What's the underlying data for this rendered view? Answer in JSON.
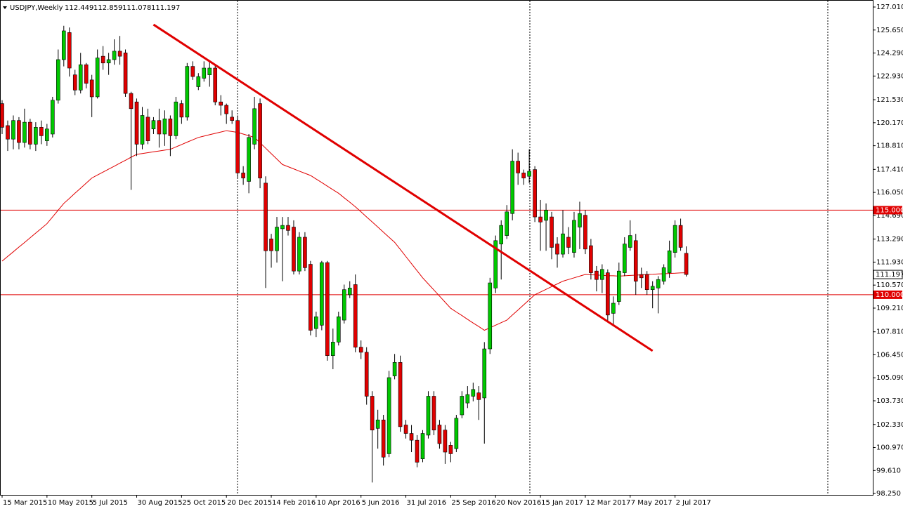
{
  "chart_data": {
    "type": "candlestick",
    "title": "USDJPY,Weekly",
    "header_ohlc": [
      "112.449",
      "112.859",
      "111.078",
      "111.197"
    ],
    "categories": [
      "15 Mar 2015",
      null,
      null,
      null,
      null,
      null,
      null,
      null,
      "10 May 2015",
      null,
      null,
      null,
      null,
      null,
      null,
      null,
      "5 Jul 2015",
      null,
      null,
      null,
      null,
      null,
      null,
      null,
      "30 Aug 2015",
      null,
      null,
      null,
      null,
      null,
      null,
      null,
      "25 Oct 2015",
      null,
      null,
      null,
      null,
      null,
      null,
      null,
      "20 Dec 2015",
      null,
      null,
      null,
      null,
      null,
      null,
      null,
      "14 Feb 2016",
      null,
      null,
      null,
      null,
      null,
      null,
      null,
      "10 Apr 2016",
      null,
      null,
      null,
      null,
      null,
      null,
      null,
      "5 Jun 2016",
      null,
      null,
      null,
      null,
      null,
      null,
      null,
      "31 Jul 2016",
      null,
      null,
      null,
      null,
      null,
      null,
      null,
      "25 Sep 2016",
      null,
      null,
      null,
      null,
      null,
      null,
      null,
      "20 Nov 2016",
      null,
      null,
      null,
      null,
      null,
      null,
      null,
      "15 Jan 2017",
      null,
      null,
      null,
      null,
      null,
      null,
      null,
      "12 Mar 2017",
      null,
      null,
      null,
      null,
      null,
      null,
      null,
      "7 May 2017",
      null,
      null,
      null,
      null,
      null,
      null,
      null,
      "2 Jul 2017",
      null,
      null
    ],
    "open": [
      121.3,
      120.0,
      119.2,
      120.3,
      119.0,
      120.2,
      118.9,
      119.9,
      119.1,
      119.5,
      121.5,
      123.9,
      125.5,
      123.0,
      122.1,
      123.6,
      122.7,
      121.7,
      124.1,
      123.7,
      123.9,
      124.4,
      124.3,
      121.9,
      121.4,
      118.9,
      120.5,
      119.8,
      120.3,
      119.5,
      120.4,
      119.4,
      121.3,
      120.5,
      123.5,
      122.3,
      122.8,
      123.0,
      123.4,
      121.4,
      121.2,
      120.5,
      120.3,
      117.2,
      116.7,
      118.9,
      121.3,
      116.6,
      113.3,
      112.6,
      113.9,
      114.1,
      114.0,
      111.4,
      113.4,
      111.8,
      108.0,
      108.2,
      111.9,
      106.4,
      107.2,
      108.5,
      110.0,
      110.6,
      106.9,
      106.6,
      104.0,
      102.1,
      102.6,
      100.6,
      105.2,
      106.0,
      102.3,
      101.8,
      101.4,
      100.3,
      101.7,
      104.0,
      102.3,
      102.0,
      101.1,
      100.9,
      102.9,
      103.6,
      104.0,
      104.2,
      103.9,
      106.8,
      110.4,
      113.0,
      113.5,
      114.8,
      117.9,
      117.2,
      117.0,
      117.4,
      114.6,
      114.4,
      114.6,
      113.0,
      112.4,
      113.4,
      112.5,
      114.0,
      114.7,
      112.9,
      111.4,
      110.9,
      111.3,
      108.9,
      109.6,
      111.3,
      112.8,
      113.2,
      111.2,
      111.2,
      110.3,
      110.4,
      110.8,
      111.3,
      112.5,
      114.1,
      112.449
    ],
    "high": [
      121.5,
      120.3,
      120.6,
      120.5,
      121.0,
      120.4,
      120.2,
      120.3,
      120.1,
      121.7,
      124.5,
      125.9,
      125.8,
      123.3,
      124.3,
      123.7,
      123.0,
      124.5,
      124.7,
      124.3,
      125.1,
      125.3,
      124.5,
      122.0,
      121.6,
      121.1,
      121.0,
      120.5,
      121.0,
      120.9,
      120.6,
      121.7,
      121.5,
      123.7,
      123.8,
      123.1,
      123.8,
      123.8,
      123.6,
      121.8,
      121.3,
      120.9,
      120.6,
      117.6,
      119.5,
      121.7,
      121.6,
      117.0,
      113.6,
      114.6,
      114.6,
      114.6,
      114.4,
      113.7,
      113.7,
      112.0,
      109.0,
      112.0,
      112.0,
      108.0,
      109.0,
      110.6,
      110.8,
      111.2,
      107.3,
      106.9,
      104.3,
      103.2,
      102.9,
      105.5,
      106.5,
      106.4,
      102.6,
      102.3,
      101.7,
      102.0,
      104.3,
      104.3,
      102.6,
      102.3,
      101.3,
      102.9,
      104.3,
      104.6,
      104.8,
      104.6,
      107.2,
      111.0,
      113.5,
      114.4,
      115.3,
      118.6,
      118.4,
      117.4,
      118.6,
      117.6,
      115.6,
      115.4,
      114.9,
      113.4,
      115.0,
      114.0,
      114.9,
      115.5,
      115.0,
      113.3,
      111.7,
      111.8,
      111.5,
      109.9,
      111.9,
      113.4,
      114.4,
      113.6,
      111.6,
      111.4,
      110.8,
      111.1,
      111.8,
      113.2,
      114.4,
      114.5,
      112.859
    ],
    "low": [
      119.5,
      118.5,
      118.6,
      118.6,
      118.7,
      118.6,
      118.5,
      118.9,
      118.8,
      119.3,
      121.3,
      123.5,
      122.9,
      121.8,
      121.9,
      122.2,
      120.5,
      121.6,
      123.3,
      123.0,
      123.6,
      123.6,
      121.7,
      116.2,
      118.2,
      118.6,
      118.9,
      119.5,
      118.7,
      118.8,
      118.2,
      119.2,
      120.1,
      120.3,
      122.7,
      122.1,
      122.6,
      122.3,
      121.2,
      120.6,
      120.1,
      120.1,
      116.9,
      116.5,
      116.0,
      118.6,
      116.3,
      110.4,
      111.6,
      111.9,
      110.8,
      113.5,
      111.2,
      111.2,
      111.4,
      107.6,
      107.5,
      107.9,
      106.1,
      105.6,
      107.0,
      108.3,
      109.8,
      106.6,
      106.2,
      103.5,
      98.9,
      100.9,
      99.9,
      100.4,
      105.0,
      101.9,
      101.5,
      100.7,
      99.8,
      100.1,
      101.5,
      101.7,
      100.9,
      100.0,
      100.1,
      100.7,
      102.7,
      103.3,
      103.7,
      102.6,
      101.2,
      106.5,
      110.1,
      110.9,
      113.3,
      114.4,
      116.5,
      116.5,
      116.6,
      114.3,
      112.6,
      112.6,
      112.1,
      111.6,
      112.2,
      112.4,
      112.2,
      112.7,
      112.4,
      110.9,
      110.2,
      110.1,
      108.4,
      108.2,
      109.4,
      111.1,
      112.6,
      110.0,
      110.4,
      110.0,
      109.2,
      108.9,
      110.6,
      111.0,
      112.2,
      112.6,
      111.078
    ],
    "close": [
      119.9,
      119.2,
      120.3,
      119.0,
      120.2,
      118.9,
      119.9,
      119.4,
      119.8,
      121.5,
      123.9,
      125.6,
      123.4,
      122.1,
      123.6,
      122.5,
      121.7,
      124.0,
      123.7,
      123.9,
      124.4,
      124.1,
      121.9,
      121.0,
      118.9,
      120.6,
      119.1,
      120.3,
      119.5,
      120.4,
      119.4,
      121.4,
      120.5,
      123.5,
      122.9,
      122.9,
      123.4,
      123.4,
      121.4,
      121.2,
      120.7,
      120.3,
      117.2,
      116.9,
      119.3,
      121.0,
      116.9,
      112.6,
      112.6,
      114.0,
      114.1,
      113.8,
      111.4,
      113.4,
      111.6,
      107.9,
      108.7,
      111.9,
      106.4,
      107.2,
      108.7,
      110.3,
      110.4,
      106.9,
      106.6,
      104.0,
      102.0,
      102.6,
      100.4,
      105.1,
      106.0,
      102.2,
      101.8,
      101.4,
      100.1,
      101.8,
      104.0,
      102.0,
      101.2,
      100.7,
      100.6,
      102.7,
      104.0,
      104.1,
      104.4,
      103.8,
      106.8,
      110.7,
      113.2,
      114.1,
      114.9,
      117.9,
      117.2,
      116.9,
      117.3,
      114.6,
      114.3,
      115.0,
      112.8,
      112.4,
      113.6,
      112.8,
      114.4,
      114.8,
      112.7,
      111.3,
      110.9,
      111.5,
      108.8,
      109.5,
      111.4,
      113.0,
      113.5,
      110.8,
      111.0,
      110.3,
      110.5,
      110.9,
      111.6,
      112.6,
      114.1,
      112.8,
      111.197
    ],
    "close_label": "111.197",
    "moving_average": [
      111.99,
      112.27,
      112.54,
      112.82,
      113.09,
      113.37,
      113.65,
      113.92,
      114.2,
      114.6,
      115.0,
      115.4,
      115.7,
      116.0,
      116.3,
      116.6,
      116.9,
      117.08,
      117.25,
      117.43,
      117.6,
      117.78,
      117.95,
      118.13,
      118.3,
      118.35,
      118.4,
      118.45,
      118.5,
      118.55,
      118.6,
      118.74,
      118.88,
      119.02,
      119.16,
      119.3,
      119.38,
      119.46,
      119.54,
      119.62,
      119.7,
      119.65,
      119.6,
      119.5,
      119.4,
      119.3,
      118.98,
      118.66,
      118.34,
      118.02,
      117.7,
      117.57,
      117.44,
      117.31,
      117.18,
      117.05,
      116.84,
      116.63,
      116.42,
      116.21,
      116.0,
      115.73,
      115.47,
      115.2,
      114.9,
      114.6,
      114.3,
      114.0,
      113.7,
      113.4,
      113.1,
      112.68,
      112.26,
      111.84,
      111.42,
      111.0,
      110.64,
      110.28,
      109.92,
      109.56,
      109.2,
      108.98,
      108.77,
      108.55,
      108.33,
      108.12,
      107.9,
      108.05,
      108.2,
      108.35,
      108.5,
      108.8,
      109.1,
      109.4,
      109.7,
      110.0,
      110.16,
      110.32,
      110.48,
      110.64,
      110.8,
      110.9,
      111.0,
      111.1,
      111.2,
      111.18,
      111.17,
      111.15,
      111.13,
      111.12,
      111.1,
      111.12,
      111.14,
      111.16,
      111.18,
      111.2,
      111.21,
      111.23,
      111.24,
      111.26,
      111.27,
      111.29,
      111.3
    ],
    "trendline": {
      "x": [
        27,
        116
      ],
      "values": [
        125.97,
        106.68
      ]
    },
    "hlines": [
      {
        "value": 115.0,
        "label": "115.000"
      },
      {
        "value": 110.0,
        "label": "110.000"
      }
    ],
    "up_color": "#00c800",
    "down_color": "#e00000",
    "line_color": "#e00000",
    "ylim": [
      98.17,
      127.425
    ],
    "yticks": [
      {
        "value": 127.01,
        "label": "127.010"
      },
      {
        "value": 125.65,
        "label": "125.650"
      },
      {
        "value": 124.29,
        "label": "124.290"
      },
      {
        "value": 122.93,
        "label": "122.930"
      },
      {
        "value": 121.53,
        "label": "121.530"
      },
      {
        "value": 120.17,
        "label": "120.170"
      },
      {
        "value": 118.81,
        "label": "118.810"
      },
      {
        "value": 117.41,
        "label": "117.410"
      },
      {
        "value": 116.05,
        "label": "116.050"
      },
      {
        "value": 114.69,
        "label": "114.690"
      },
      {
        "value": 113.29,
        "label": "113.290"
      },
      {
        "value": 111.93,
        "label": "111.930"
      },
      {
        "value": 110.57,
        "label": "110.570"
      },
      {
        "value": 109.21,
        "label": "109.210"
      },
      {
        "value": 107.81,
        "label": "107.810"
      },
      {
        "value": 106.45,
        "label": "106.450"
      },
      {
        "value": 105.09,
        "label": "105.090"
      },
      {
        "value": 103.73,
        "label": "103.730"
      },
      {
        "value": 102.33,
        "label": "102.330"
      },
      {
        "value": 100.97,
        "label": "100.970"
      },
      {
        "value": 99.61,
        "label": "99.610"
      },
      {
        "value": 98.25,
        "label": "98.250"
      }
    ]
  }
}
